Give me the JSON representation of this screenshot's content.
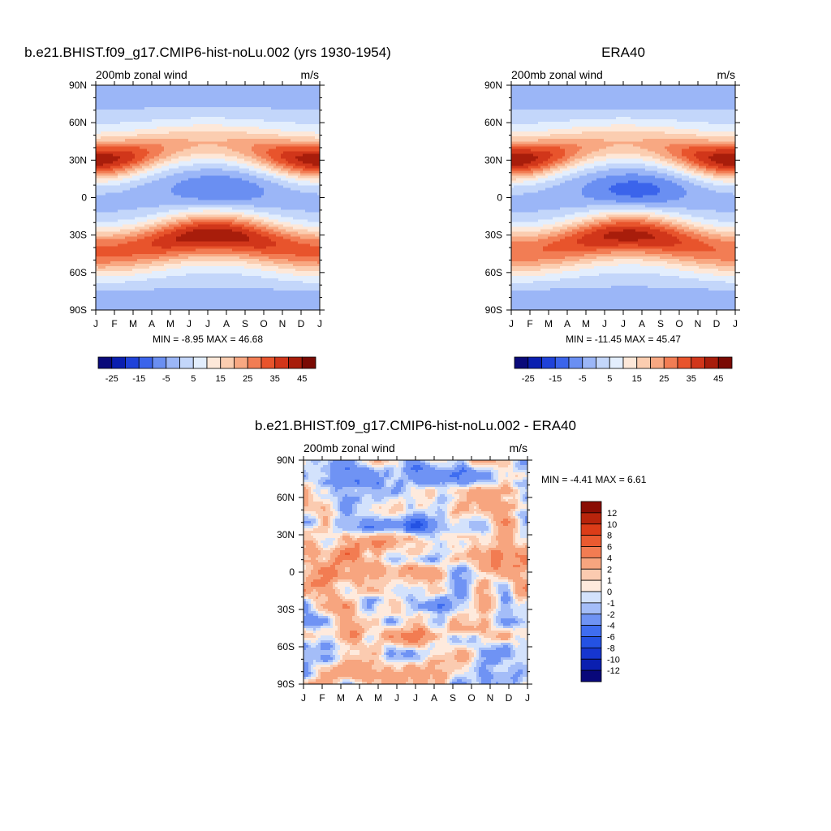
{
  "palettes": {
    "full": [
      "#0a0a7a",
      "#0a1fb0",
      "#1f42d9",
      "#3b64eb",
      "#6a8ff2",
      "#9bb6f7",
      "#c3d6fa",
      "#e3eefd",
      "#fde8d9",
      "#fbcdb0",
      "#f8a882",
      "#f27d54",
      "#e8542c",
      "#d1361a",
      "#a81d0b",
      "#7a0a04"
    ],
    "diff": [
      "#08087a",
      "#0a1fb0",
      "#1636cf",
      "#2452e3",
      "#3f6df0",
      "#6f93f4",
      "#a4bdf8",
      "#d3e2fc",
      "#feeadd",
      "#fbcbb0",
      "#f7a57f",
      "#f27c52",
      "#ea5a30",
      "#dc3c18",
      "#b8240c",
      "#8a0d04"
    ]
  },
  "panels": [
    {
      "title": "b.e21.BHIST.f09_g17.CMIP6-hist-noLu.002 (yrs 1930-1954)",
      "left_label": "200mb zonal wind",
      "right_label": "m/s",
      "stats": "MIN =  -8.95 MAX =  46.68",
      "colorbar_ticks": [
        "-25",
        "-15",
        "-5",
        "5",
        "15",
        "25",
        "35",
        "45"
      ]
    },
    {
      "title": "ERA40",
      "left_label": "200mb zonal wind",
      "right_label": "m/s",
      "stats": "MIN = -11.45 MAX =  45.47",
      "colorbar_ticks": [
        "-25",
        "-15",
        "-5",
        "5",
        "15",
        "25",
        "35",
        "45"
      ]
    },
    {
      "title": "b.e21.BHIST.f09_g17.CMIP6-hist-noLu.002 - ERA40",
      "left_label": "200mb zonal wind",
      "right_label": "m/s",
      "stats": "MIN =  -4.41 MAX =   6.61",
      "colorbar_ticks": [
        "12",
        "10",
        "8",
        "6",
        "4",
        "2",
        "1",
        "0",
        "-1",
        "-2",
        "-4",
        "-6",
        "-8",
        "-10",
        "-12"
      ]
    }
  ],
  "chart_data": [
    {
      "type": "heatmap",
      "title": "b.e21.BHIST.f09_g17.CMIP6-hist-noLu.002 (yrs 1930-1954)",
      "variable": "200mb zonal wind",
      "units": "m/s",
      "x": [
        "J",
        "F",
        "M",
        "A",
        "M",
        "J",
        "J",
        "A",
        "S",
        "O",
        "N",
        "D",
        "J"
      ],
      "y": [
        "90N",
        "60N",
        "30N",
        "0",
        "30S",
        "60S",
        "90S"
      ],
      "min": -8.95,
      "max": 46.68,
      "levels": [
        -30,
        -25,
        -20,
        -15,
        -10,
        -5,
        0,
        5,
        10,
        15,
        20,
        25,
        30,
        35,
        40,
        45,
        50
      ],
      "features": {
        "nh_jet": {
          "lat_winter": 30,
          "lat_summer": 42,
          "peak": 44,
          "trough": 18
        },
        "sh_jet": {
          "lat_winter": -30,
          "lat_summer": -42,
          "peak": 46,
          "trough": 32
        },
        "equatorial_easterlies": {
          "lat": 5,
          "peak": -8.9
        },
        "polar": -2
      }
    },
    {
      "type": "heatmap",
      "title": "ERA40",
      "variable": "200mb zonal wind",
      "units": "m/s",
      "x": [
        "J",
        "F",
        "M",
        "A",
        "M",
        "J",
        "J",
        "A",
        "S",
        "O",
        "N",
        "D",
        "J"
      ],
      "y": [
        "90N",
        "60N",
        "30N",
        "0",
        "30S",
        "60S",
        "90S"
      ],
      "min": -11.45,
      "max": 45.47,
      "levels": [
        -30,
        -25,
        -20,
        -15,
        -10,
        -5,
        0,
        5,
        10,
        15,
        20,
        25,
        30,
        35,
        40,
        45,
        50
      ],
      "features": {
        "nh_jet": {
          "lat_winter": 30,
          "lat_summer": 42,
          "peak": 45,
          "trough": 18
        },
        "sh_jet": {
          "lat_winter": -30,
          "lat_summer": -42,
          "peak": 44,
          "trough": 30
        },
        "equatorial_easterlies": {
          "lat": 5,
          "peak": -11.4
        },
        "polar": -3
      }
    },
    {
      "type": "heatmap",
      "title": "b.e21.BHIST.f09_g17.CMIP6-hist-noLu.002 - ERA40",
      "variable": "200mb zonal wind",
      "units": "m/s",
      "x": [
        "J",
        "F",
        "M",
        "A",
        "M",
        "J",
        "J",
        "A",
        "S",
        "O",
        "N",
        "D",
        "J"
      ],
      "y": [
        "90N",
        "60N",
        "30N",
        "0",
        "30S",
        "60S",
        "90S"
      ],
      "min": -4.41,
      "max": 6.61,
      "levels": [
        -14,
        -12,
        -10,
        -8,
        -6,
        -4,
        -2,
        -1,
        0,
        1,
        2,
        4,
        6,
        8,
        10,
        12,
        14
      ]
    }
  ]
}
